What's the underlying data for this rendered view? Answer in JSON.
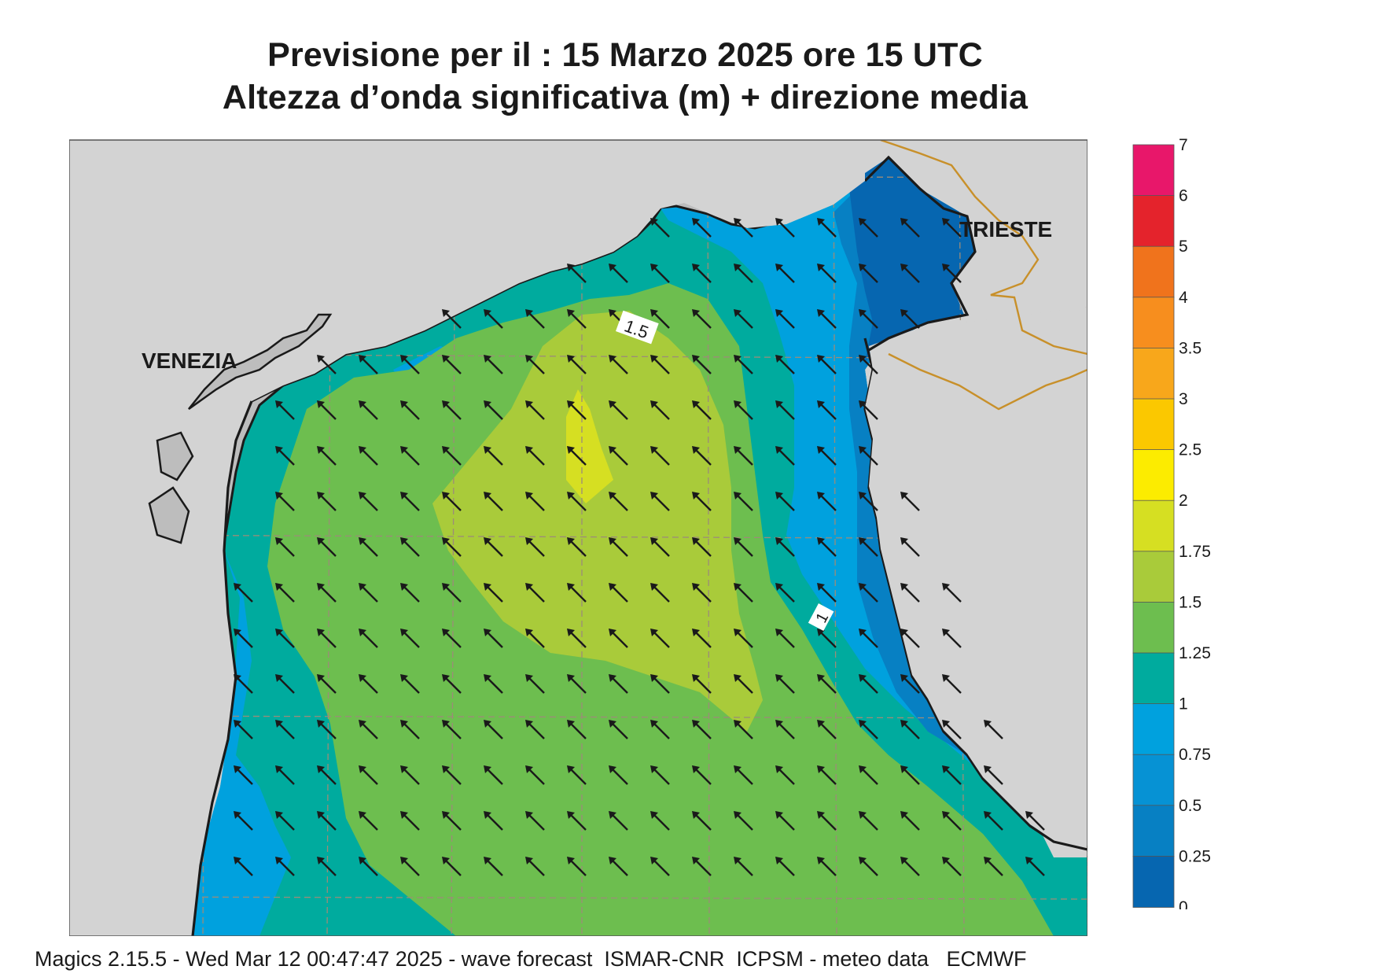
{
  "title_line1": "Previsione per il  :  15   Marzo   2025   ore 15 UTC",
  "title_line2": "Altezza d’onda significativa (m) + direzione media",
  "map": {
    "place_labels": [
      "VENEZIA",
      "TRIESTE"
    ],
    "contour_labels": [
      "1.5",
      "1"
    ],
    "background_color": "#d3d3d3",
    "coastline_color": "#1a1a1a",
    "border_color": "#c8902a",
    "grid_color": "#9c8c78",
    "arrow_direction": "north-west"
  },
  "legend": {
    "levels": [
      "7",
      "6",
      "5",
      "4",
      "3.5",
      "3",
      "2.5",
      "2",
      "1.75",
      "1.5",
      "1.25",
      "1",
      "0.75",
      "0.5",
      "0.25",
      "0"
    ],
    "colors": [
      "#e8176a",
      "#e4232c",
      "#f0731c",
      "#f78e1e",
      "#f8a71b",
      "#fbc800",
      "#fcec00",
      "#d6df22",
      "#a9cb3a",
      "#6dbe4f",
      "#00ab9e",
      "#00a1de",
      "#0692d4",
      "#0780c3",
      "#0666b0"
    ]
  },
  "footer": "Magics 2.15.5 - Wed Mar 12 00:47:47 2025 - wave forecast  ISMAR-CNR  ICPSM - meteo data   ECMWF"
}
